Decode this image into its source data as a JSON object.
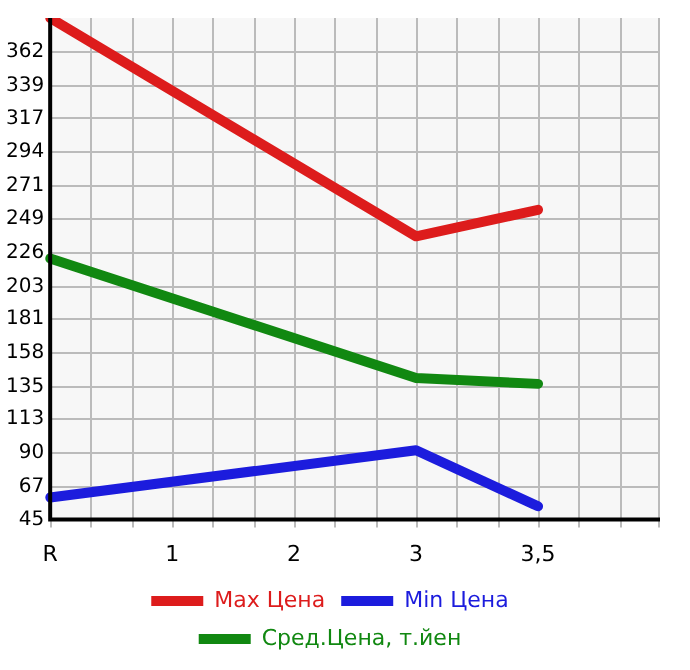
{
  "chart_data": {
    "type": "line",
    "categories": [
      "R",
      "1",
      "2",
      "3",
      "3,5",
      null
    ],
    "series": [
      {
        "name": "Max Цена",
        "color": "#dd1c1c",
        "values": [
          385,
          null,
          null,
          237,
          255,
          null
        ]
      },
      {
        "name": "Min Цена",
        "color": "#1c1cdd",
        "values": [
          60,
          null,
          null,
          92,
          54,
          null
        ]
      },
      {
        "name": "Сред.Цена, т.йен",
        "color": "#118811",
        "values": [
          222,
          null,
          null,
          141,
          137,
          null
        ]
      }
    ],
    "ylim": [
      45,
      385
    ],
    "yticks": [
      45,
      67,
      90,
      113,
      135,
      158,
      181,
      203,
      226,
      249,
      271,
      294,
      317,
      339,
      362
    ],
    "grid": true,
    "legend": "bottom",
    "marker": "none",
    "line_style": "solid"
  }
}
